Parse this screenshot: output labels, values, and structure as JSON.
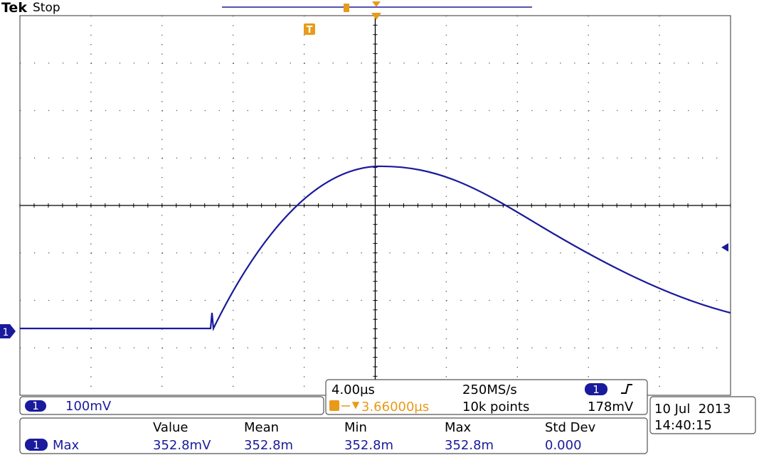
{
  "header": {
    "brand": "Tek",
    "status": "Stop"
  },
  "markers": {
    "trigger": "T",
    "channel": "1"
  },
  "channel_box": {
    "channel": "1",
    "scale": "100mV"
  },
  "timebase_box": {
    "horizontal": "4.00µs",
    "sample_rate": "250MS/s",
    "trigger_channel": "1",
    "trigger_level": "178mV",
    "position": "3.66000µs",
    "record_length": "10k points"
  },
  "datetime": {
    "date": "10 Jul  2013",
    "time": "14:40:15"
  },
  "measurements": {
    "headers": [
      "Value",
      "Mean",
      "Min",
      "Max",
      "Std Dev"
    ],
    "rows": [
      {
        "channel": "1",
        "name": "Max",
        "cells": [
          "352.8mV",
          "352.8m",
          "352.8m",
          "352.8m",
          "0.000"
        ]
      }
    ]
  }
}
